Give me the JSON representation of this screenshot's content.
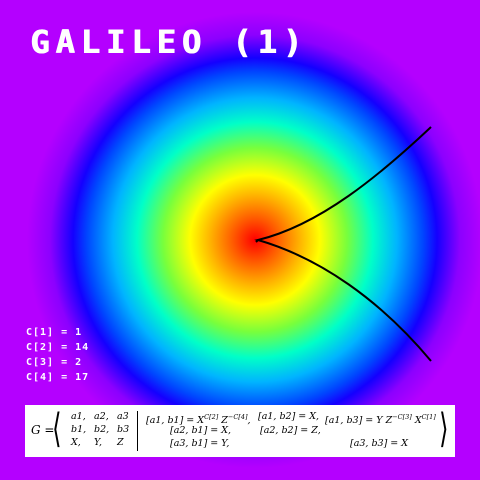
{
  "title": "GALILEO (1)",
  "counters": [
    "C[1] = 1",
    "C[2] = 14",
    "C[3] = 2",
    "C[4] = 17"
  ],
  "formula": {
    "lhs": "G =",
    "generators": [
      [
        "a1,",
        "a2,",
        "a3"
      ],
      [
        "b1,",
        "b2,",
        "b3"
      ],
      [
        "X,",
        "Y,",
        "Z"
      ]
    ],
    "relations": {
      "a1b1": "[a1, b1] = X^{C[2]} Z^{−C[4]},",
      "a1b2": "[a1, b2] = X,",
      "a1b3": "[a1, b3] = Y Z^{−C[3]} X^{C[1]}",
      "a2b1": "[a2, b1] = X,",
      "a2b2": "[a2, b2] = Z,",
      "a3b1": "[a3, b1] = Y,",
      "a3b3": "[a3, b3] = X"
    }
  },
  "colors": {
    "background": "#b400ff",
    "center": "#ff0000",
    "curve": "#000000",
    "text": "#ffffff"
  }
}
